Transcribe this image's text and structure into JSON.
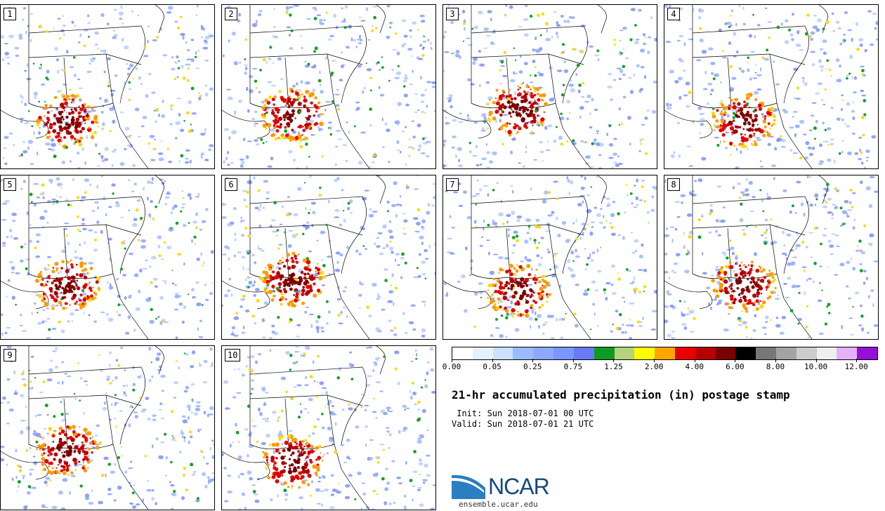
{
  "panels": [
    {
      "label": "1"
    },
    {
      "label": "2"
    },
    {
      "label": "3"
    },
    {
      "label": "4"
    },
    {
      "label": "5"
    },
    {
      "label": "6"
    },
    {
      "label": "7"
    },
    {
      "label": "8"
    },
    {
      "label": "9"
    },
    {
      "label": "10"
    }
  ],
  "colorbar": {
    "colors": [
      "#ffffff",
      "#e6f0ff",
      "#cce0ff",
      "#99bbff",
      "#8fa8ff",
      "#7a96ff",
      "#6a7af7",
      "#0e9a25",
      "#b3d47a",
      "#fffb00",
      "#ffa500",
      "#ea0000",
      "#b80000",
      "#7a0000",
      "#000000",
      "#777777",
      "#a3a3a3",
      "#cccccc",
      "#efefef",
      "#e4b2f8",
      "#9610d8"
    ],
    "tick_labels": [
      "0.00",
      "0.05",
      "0.25",
      "0.75",
      "1.25",
      "2.00",
      "4.00",
      "6.00",
      "8.00",
      "10.00",
      "12.00"
    ]
  },
  "title": "21-hr accumulated precipitation (in) postage stamp",
  "init": " Init: Sun 2018-07-01 00 UTC",
  "valid": "Valid: Sun 2018-07-01 21 UTC",
  "logo": {
    "text": "NCAR",
    "color": "#124b7c",
    "swoosh_color": "#2b7ec0"
  },
  "site": "ensemble.ucar.edu"
}
